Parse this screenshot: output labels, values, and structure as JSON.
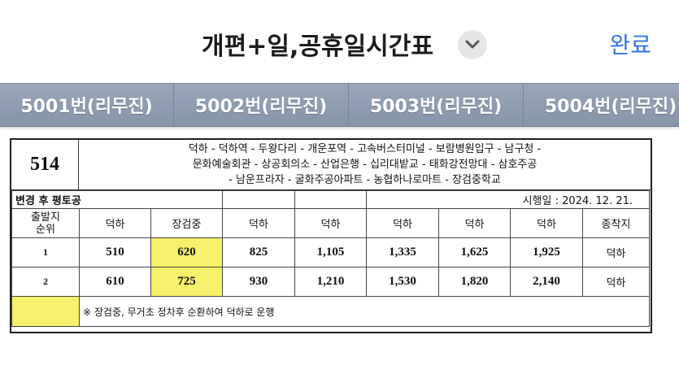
{
  "header": {
    "title": "개편+일,공휴일시간표",
    "done_label": "완료",
    "dropdown_icon": "chevron-down-icon"
  },
  "tabs": [
    {
      "label": "5001번(리무진)"
    },
    {
      "label": "5002번(리무진)"
    },
    {
      "label": "5003번(리무진)"
    },
    {
      "label": "5004번(리무진)"
    }
  ],
  "timetable": {
    "route_number": "514",
    "route_path_lines": [
      "덕하 - 덕하역 - 두왕다리 - 개운포역 - 고속버스터미널 - 보람병원입구 - 남구청 -",
      "문화예술회관 - 상공회의소 - 산업은행 - 십리대밭교 - 태화강전망대 - 삼호주공",
      "- 남운프라자 - 굴화주공아파트 - 농협하나로마트 - 장검중학교"
    ],
    "change_note": "변경 후 평토공",
    "effective_date": "시행일 : 2024. 12. 21.",
    "columns": [
      "출발지\n순위",
      "덕하",
      "장검중",
      "덕하",
      "덕하",
      "덕하",
      "덕하",
      "덕하",
      "종착지"
    ],
    "rows": [
      {
        "order": "1",
        "times": [
          "510",
          "620",
          "825",
          "1,105",
          "1,335",
          "1,625",
          "1,925"
        ],
        "end": "덕하"
      },
      {
        "order": "2",
        "times": [
          "610",
          "725",
          "930",
          "1,210",
          "1,530",
          "1,820",
          "2,140"
        ],
        "end": "덕하"
      }
    ],
    "footnote": "※ 장검중, 무거초 정차후 순환하여 덕하로 운행",
    "highlight_color": "#f6f06a"
  }
}
